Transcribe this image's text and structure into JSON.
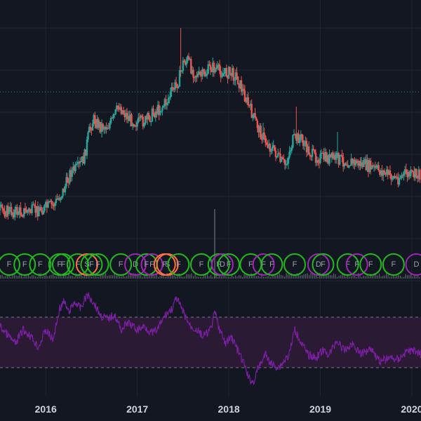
{
  "theme": {
    "background": "#131722",
    "grid": "#1f2430",
    "up": "#26a69a",
    "down": "#ef5350",
    "price_line": "#26a69a",
    "volume": "#5d606b",
    "rsi_line": "#7b1fa2",
    "rsi_band_fill": "#2a1a33",
    "rsi_band_line": "#787b86",
    "marker_green": "#22b91f",
    "marker_purple": "#9c27b0",
    "marker_orange": "#ff7043"
  },
  "chart_data": {
    "type": "candlestick",
    "x_axis": {
      "ticks": [
        {
          "label": "2016",
          "t": 2016.0
        },
        {
          "label": "2017",
          "t": 2017.0
        },
        {
          "label": "2018",
          "t": 2018.0
        },
        {
          "label": "2019",
          "t": 2019.0
        },
        {
          "label": "2020",
          "t": 2020.0
        }
      ],
      "xlim": [
        2015.5,
        2020.1
      ]
    },
    "price": {
      "ylim": [
        0,
        600
      ],
      "reference_line": 131,
      "grid": true,
      "keypoints": [
        [
          2015.5,
          300
        ],
        [
          2015.7,
          302
        ],
        [
          2015.9,
          300
        ],
        [
          2016.0,
          296
        ],
        [
          2016.1,
          290
        ],
        [
          2016.2,
          270
        ],
        [
          2016.27,
          245
        ],
        [
          2016.35,
          240
        ],
        [
          2016.42,
          225
        ],
        [
          2016.47,
          190
        ],
        [
          2016.52,
          170
        ],
        [
          2016.6,
          180
        ],
        [
          2016.67,
          180
        ],
        [
          2016.73,
          172
        ],
        [
          2016.8,
          150
        ],
        [
          2016.85,
          160
        ],
        [
          2016.92,
          170
        ],
        [
          2017.0,
          175
        ],
        [
          2017.1,
          172
        ],
        [
          2017.18,
          160
        ],
        [
          2017.25,
          155
        ],
        [
          2017.32,
          145
        ],
        [
          2017.38,
          130
        ],
        [
          2017.45,
          115
        ],
        [
          2017.5,
          90
        ],
        [
          2017.55,
          85
        ],
        [
          2017.6,
          100
        ],
        [
          2017.68,
          110
        ],
        [
          2017.75,
          105
        ],
        [
          2017.8,
          95
        ],
        [
          2017.88,
          100
        ],
        [
          2017.95,
          105
        ],
        [
          2018.0,
          103
        ],
        [
          2018.08,
          108
        ],
        [
          2018.12,
          120
        ],
        [
          2018.2,
          145
        ],
        [
          2018.28,
          170
        ],
        [
          2018.35,
          190
        ],
        [
          2018.42,
          205
        ],
        [
          2018.5,
          215
        ],
        [
          2018.56,
          230
        ],
        [
          2018.62,
          235
        ],
        [
          2018.7,
          200
        ],
        [
          2018.78,
          195
        ],
        [
          2018.84,
          210
        ],
        [
          2018.92,
          222
        ],
        [
          2019.0,
          225
        ],
        [
          2019.1,
          226
        ],
        [
          2019.18,
          225
        ],
        [
          2019.28,
          230
        ],
        [
          2019.38,
          232
        ],
        [
          2019.48,
          235
        ],
        [
          2019.58,
          240
        ],
        [
          2019.68,
          245
        ],
        [
          2019.76,
          250
        ],
        [
          2019.84,
          255
        ],
        [
          2019.92,
          248
        ],
        [
          2020.0,
          250
        ],
        [
          2020.1,
          248
        ]
      ],
      "spikes": [
        [
          2017.47,
          40
        ],
        [
          2017.8,
          88
        ],
        [
          2018.74,
          152
        ],
        [
          2019.19,
          188
        ],
        [
          2018.38,
          175
        ]
      ]
    },
    "volume": {
      "spike": {
        "t": 2017.84,
        "top": 298
      }
    },
    "signal_markers": [
      {
        "t": 2015.6,
        "label": "F",
        "color": "green"
      },
      {
        "t": 2015.77,
        "label": "F",
        "color": "green"
      },
      {
        "t": 2015.94,
        "label": "F",
        "color": "green"
      },
      {
        "t": 2016.15,
        "label": "F",
        "color": "green"
      },
      {
        "t": 2016.19,
        "label": "F",
        "color": "green"
      },
      {
        "t": 2016.35,
        "label": "F",
        "color": "green"
      },
      {
        "t": 2016.45,
        "label": "S",
        "color": "orange"
      },
      {
        "t": 2016.5,
        "label": "F",
        "color": "green"
      },
      {
        "t": 2016.57,
        "label": "F",
        "color": "green"
      },
      {
        "t": 2016.82,
        "label": "F",
        "color": "green"
      },
      {
        "t": 2016.98,
        "label": "D",
        "color": "purple"
      },
      {
        "t": 2017.1,
        "label": "F",
        "color": "green"
      },
      {
        "t": 2017.16,
        "label": "F",
        "color": "purple"
      },
      {
        "t": 2017.3,
        "label": "F",
        "color": "orange"
      },
      {
        "t": 2017.33,
        "label": "S",
        "color": "orange"
      },
      {
        "t": 2017.45,
        "label": "F",
        "color": "green"
      },
      {
        "t": 2017.7,
        "label": "F",
        "color": "green"
      },
      {
        "t": 2017.89,
        "label": "F",
        "color": "green"
      },
      {
        "t": 2017.93,
        "label": "D",
        "color": "purple"
      },
      {
        "t": 2018.0,
        "label": "F",
        "color": "green"
      },
      {
        "t": 2018.24,
        "label": "F",
        "color": "green"
      },
      {
        "t": 2018.38,
        "label": "F",
        "color": "purple"
      },
      {
        "t": 2018.47,
        "label": "F",
        "color": "green"
      },
      {
        "t": 2018.72,
        "label": "F",
        "color": "green"
      },
      {
        "t": 2018.98,
        "label": "D",
        "color": "purple"
      },
      {
        "t": 2019.03,
        "label": "F",
        "color": "green"
      },
      {
        "t": 2019.3,
        "label": "F",
        "color": "green"
      },
      {
        "t": 2019.4,
        "label": "F",
        "color": "purple"
      },
      {
        "t": 2019.55,
        "label": "F",
        "color": "green"
      },
      {
        "t": 2019.8,
        "label": "F",
        "color": "green"
      },
      {
        "t": 2020.05,
        "label": "D",
        "color": "purple"
      }
    ],
    "rsi": {
      "upper_band": 452,
      "lower_band": 524,
      "keypoints": [
        [
          2015.5,
          465
        ],
        [
          2015.6,
          480
        ],
        [
          2015.67,
          490
        ],
        [
          2015.75,
          470
        ],
        [
          2015.83,
          478
        ],
        [
          2015.92,
          495
        ],
        [
          2016.0,
          470
        ],
        [
          2016.08,
          485
        ],
        [
          2016.15,
          440
        ],
        [
          2016.2,
          430
        ],
        [
          2016.25,
          445
        ],
        [
          2016.32,
          430
        ],
        [
          2016.38,
          440
        ],
        [
          2016.45,
          420
        ],
        [
          2016.52,
          430
        ],
        [
          2016.6,
          450
        ],
        [
          2016.68,
          455
        ],
        [
          2016.75,
          448
        ],
        [
          2016.82,
          470
        ],
        [
          2016.9,
          460
        ],
        [
          2017.0,
          470
        ],
        [
          2017.08,
          465
        ],
        [
          2017.16,
          475
        ],
        [
          2017.22,
          470
        ],
        [
          2017.3,
          450
        ],
        [
          2017.38,
          440
        ],
        [
          2017.43,
          425
        ],
        [
          2017.5,
          445
        ],
        [
          2017.58,
          465
        ],
        [
          2017.65,
          470
        ],
        [
          2017.72,
          480
        ],
        [
          2017.8,
          470
        ],
        [
          2017.85,
          445
        ],
        [
          2017.9,
          470
        ],
        [
          2017.96,
          490
        ],
        [
          2018.03,
          480
        ],
        [
          2018.1,
          500
        ],
        [
          2018.17,
          520
        ],
        [
          2018.22,
          540
        ],
        [
          2018.27,
          545
        ],
        [
          2018.32,
          525
        ],
        [
          2018.4,
          505
        ],
        [
          2018.47,
          520
        ],
        [
          2018.55,
          523
        ],
        [
          2018.6,
          515
        ],
        [
          2018.66,
          505
        ],
        [
          2018.72,
          470
        ],
        [
          2018.8,
          490
        ],
        [
          2018.86,
          505
        ],
        [
          2018.95,
          510
        ],
        [
          2019.02,
          500
        ],
        [
          2019.1,
          505
        ],
        [
          2019.18,
          485
        ],
        [
          2019.26,
          500
        ],
        [
          2019.35,
          490
        ],
        [
          2019.45,
          505
        ],
        [
          2019.55,
          495
        ],
        [
          2019.65,
          515
        ],
        [
          2019.75,
          510
        ],
        [
          2019.85,
          512
        ],
        [
          2019.95,
          500
        ],
        [
          2020.05,
          500
        ],
        [
          2020.1,
          505
        ]
      ]
    }
  }
}
